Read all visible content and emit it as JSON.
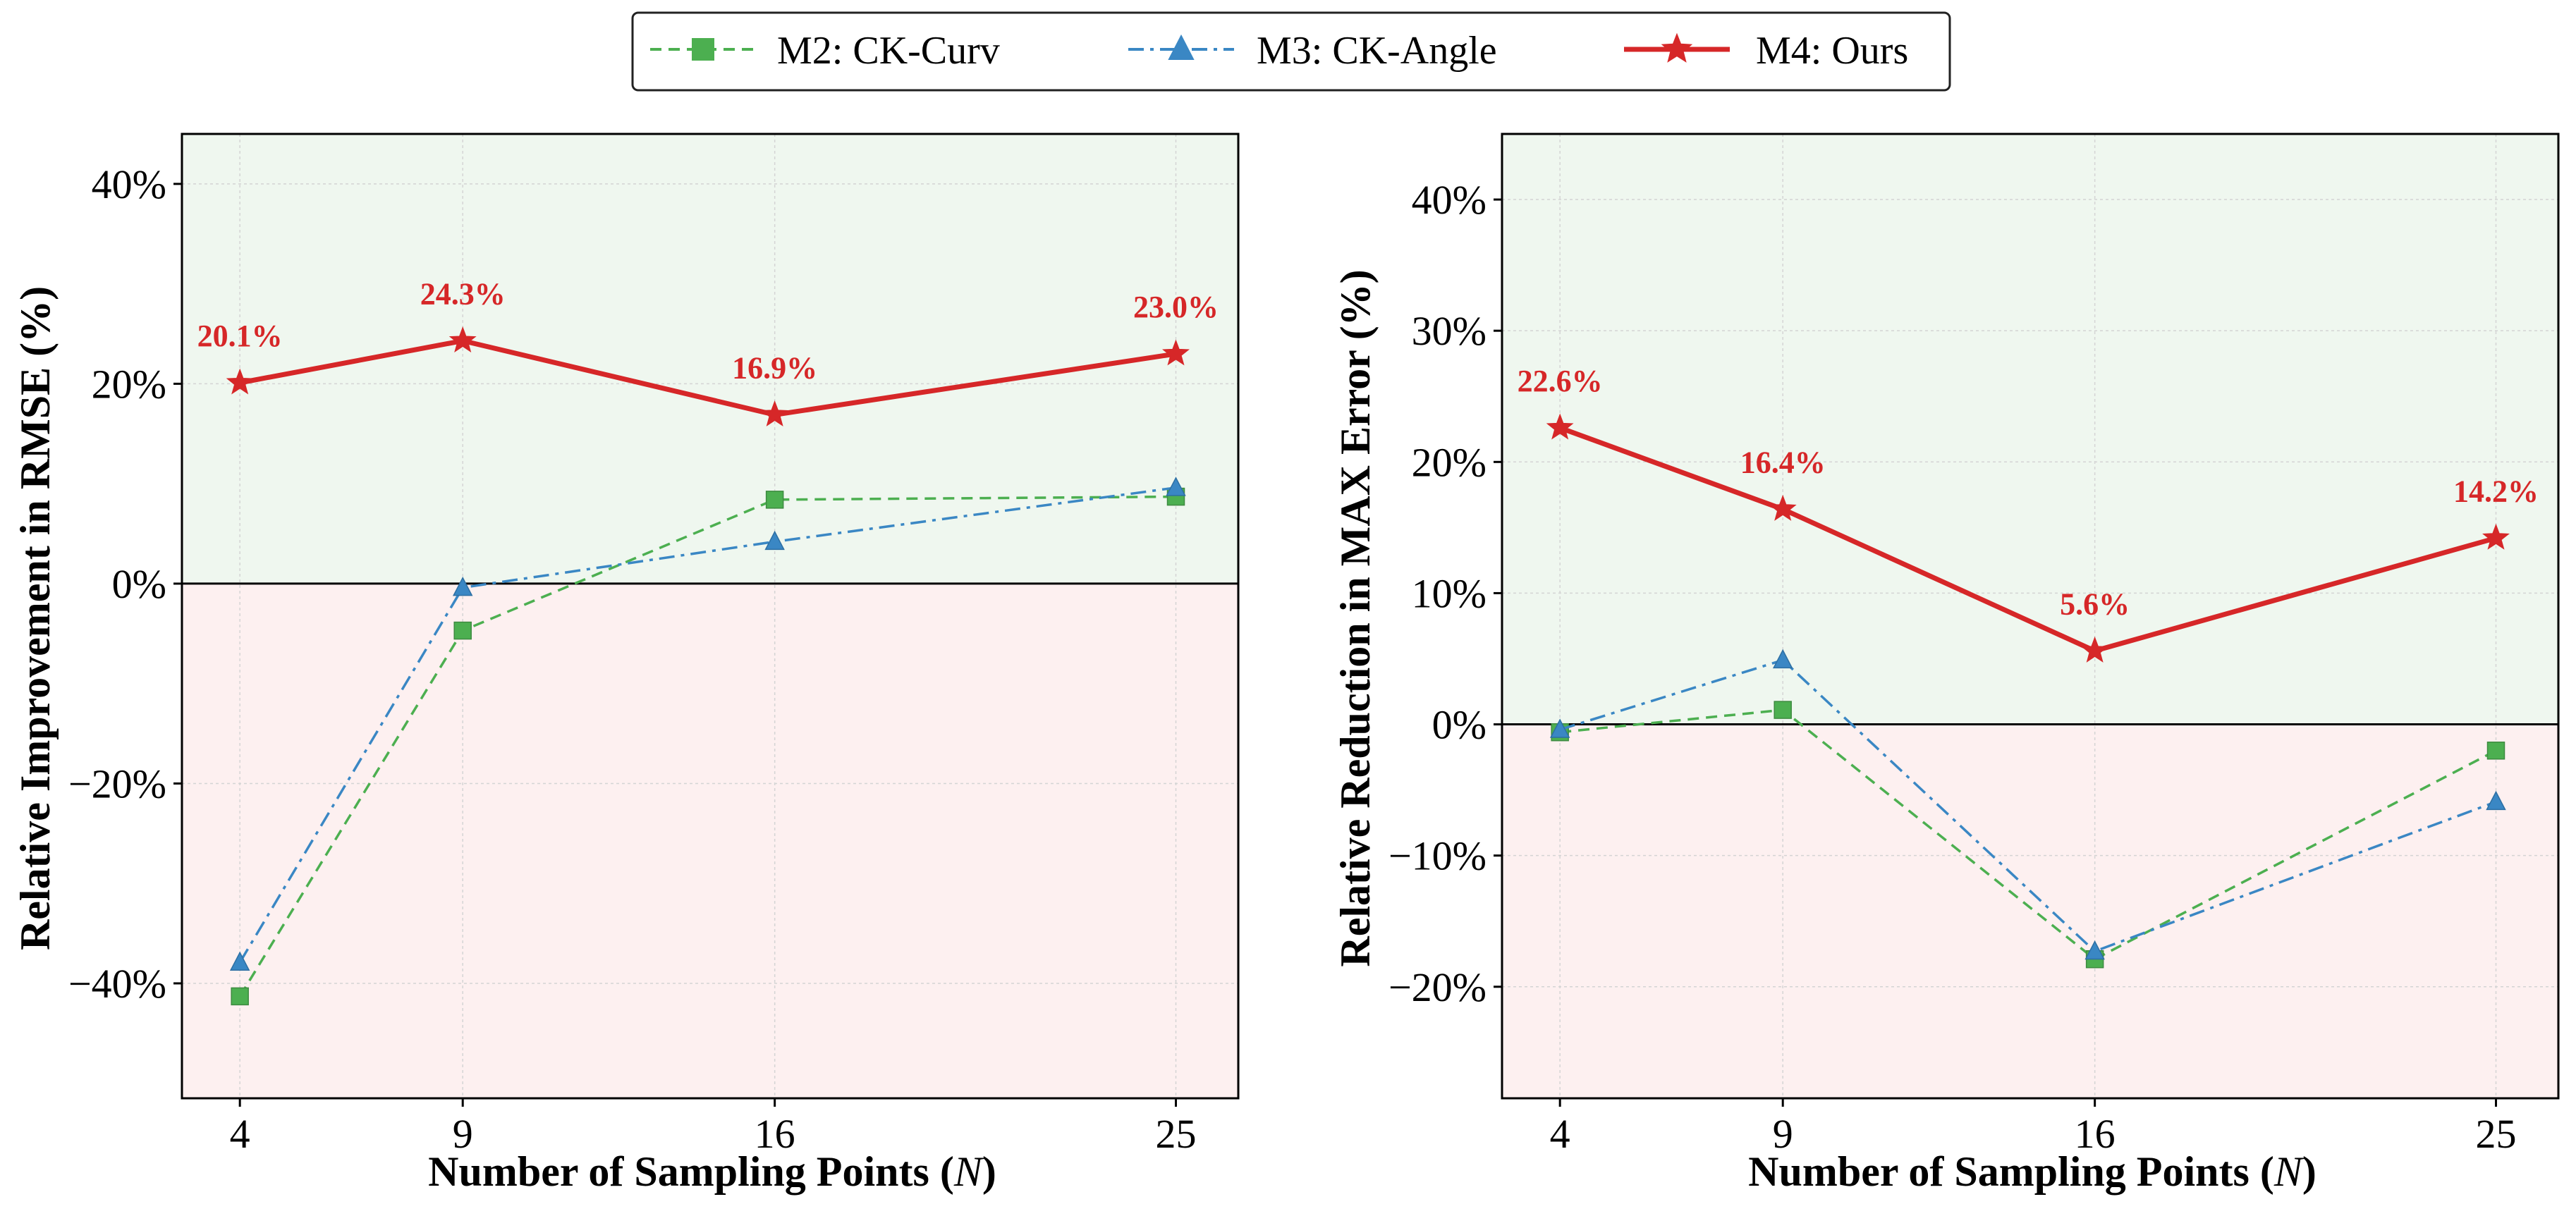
{
  "colors": {
    "ours": "#d62728",
    "curv": "#4caf50",
    "angle": "#3a87c4",
    "positive_region": "#eff7ef",
    "negative_region": "#fdf0f0"
  },
  "legend": {
    "items": [
      {
        "key": "curv",
        "label": "M2: CK-Curv",
        "marker": "square-icon",
        "dash": "dashed"
      },
      {
        "key": "angle",
        "label": "M3: CK-Angle",
        "marker": "triangle-icon",
        "dash": "dash-dot"
      },
      {
        "key": "ours",
        "label": "M4: Ours",
        "marker": "star-icon",
        "dash": "solid"
      }
    ]
  },
  "chart_data": [
    {
      "type": "line",
      "title": "",
      "xlabel": "Number of Sampling Points (N)",
      "xlabel_parts": {
        "prefix": "Number of Sampling Points (",
        "var": "N",
        "suffix": ")"
      },
      "ylabel": "Relative Improvement in RMSE (%)",
      "categories": [
        "4",
        "9",
        "16",
        "25"
      ],
      "x": [
        4,
        9,
        16,
        25
      ],
      "xlim": [
        2.7,
        26.4
      ],
      "ylim": [
        -51.5,
        45
      ],
      "yticks": [
        -40,
        -20,
        0,
        20,
        40
      ],
      "ytick_labels": [
        "−40%",
        "−20%",
        "0%",
        "20%",
        "40%"
      ],
      "grid": true,
      "series": [
        {
          "key": "curv",
          "name": "M2: CK-Curv",
          "values": [
            -41.3,
            -4.7,
            8.4,
            8.7
          ]
        },
        {
          "key": "angle",
          "name": "M3: CK-Angle",
          "values": [
            -37.9,
            -0.4,
            4.2,
            9.6
          ]
        },
        {
          "key": "ours",
          "name": "M4: Ours",
          "values": [
            20.1,
            24.3,
            16.9,
            23.0
          ],
          "labels": [
            "20.1%",
            "24.3%",
            "16.9%",
            "23.0%"
          ]
        }
      ]
    },
    {
      "type": "line",
      "title": "",
      "xlabel": "Number of Sampling Points (N)",
      "xlabel_parts": {
        "prefix": "Number of Sampling Points (",
        "var": "N",
        "suffix": ")"
      },
      "ylabel": "Relative Reduction in MAX Error (%)",
      "categories": [
        "4",
        "9",
        "16",
        "25"
      ],
      "x": [
        4,
        9,
        16,
        25
      ],
      "xlim": [
        2.7,
        26.4
      ],
      "ylim": [
        -28.5,
        45
      ],
      "yticks": [
        -20,
        -10,
        0,
        10,
        20,
        30,
        40
      ],
      "ytick_labels": [
        "−20%",
        "−10%",
        "0%",
        "10%",
        "20%",
        "30%",
        "40%"
      ],
      "grid": true,
      "series": [
        {
          "key": "curv",
          "name": "M2: CK-Curv",
          "values": [
            -0.6,
            1.1,
            -17.9,
            -2.0
          ]
        },
        {
          "key": "angle",
          "name": "M3: CK-Angle",
          "values": [
            -0.4,
            4.9,
            -17.3,
            -5.9
          ]
        },
        {
          "key": "ours",
          "name": "M4: Ours",
          "values": [
            22.6,
            16.4,
            5.6,
            14.2
          ],
          "labels": [
            "22.6%",
            "16.4%",
            "5.6%",
            "14.2%"
          ]
        }
      ]
    }
  ]
}
